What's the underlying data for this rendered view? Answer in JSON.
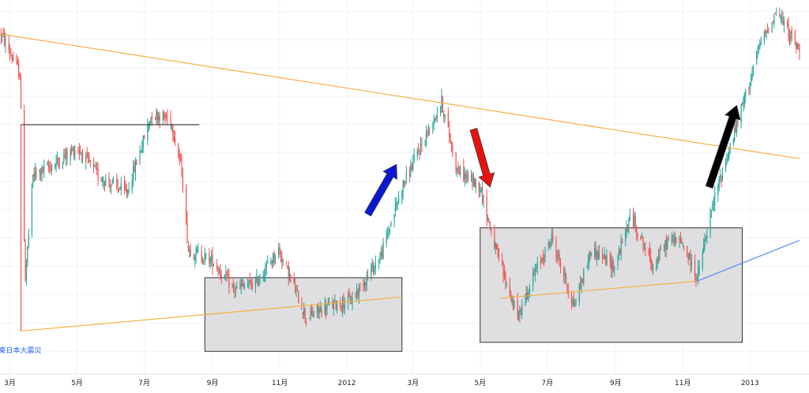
{
  "colors": {
    "background": "#ffffff",
    "grid": "#f0f3fa",
    "axis": "#e0e3eb",
    "up": "#26a69a",
    "down": "#ef5350",
    "trendline": "#f5b041",
    "baseline": "#f5b041",
    "rising_line": "#5b8def",
    "box_fill": "#d9d9dc",
    "box_stroke": "#333333",
    "level_line": "#444444",
    "arrow_blue": "#0a18d6",
    "arrow_red": "#e8110f",
    "arrow_black": "#000000",
    "annotation_text": "#2962ff"
  },
  "chart_data": {
    "type": "candlestick",
    "title": "",
    "xlabel": "",
    "ylabel": "",
    "grid": true,
    "x_range": [
      "2011-02-20",
      "2013-02-15"
    ],
    "y_range": [
      7800,
      11100
    ],
    "x_ticks": [
      {
        "date": "2011-03-01",
        "label": "3月"
      },
      {
        "date": "2011-05-01",
        "label": "5月"
      },
      {
        "date": "2011-07-01",
        "label": "7月"
      },
      {
        "date": "2011-09-01",
        "label": "9月"
      },
      {
        "date": "2011-11-01",
        "label": "11月"
      },
      {
        "date": "2012-01-01",
        "label": "2012"
      },
      {
        "date": "2012-03-01",
        "label": "3月"
      },
      {
        "date": "2012-05-01",
        "label": "5月"
      },
      {
        "date": "2012-07-01",
        "label": "7月"
      },
      {
        "date": "2012-09-01",
        "label": "9月"
      },
      {
        "date": "2012-11-01",
        "label": "11月"
      },
      {
        "date": "2013-01-01",
        "label": "2013"
      }
    ],
    "price_path": [
      [
        "2011-02-21",
        10800
      ],
      [
        "2011-03-10",
        10450
      ],
      [
        "2011-03-15",
        8650
      ],
      [
        "2011-03-22",
        9550
      ],
      [
        "2011-04-10",
        9650
      ],
      [
        "2011-05-01",
        9800
      ],
      [
        "2011-05-20",
        9550
      ],
      [
        "2011-06-15",
        9400
      ],
      [
        "2011-07-08",
        10100
      ],
      [
        "2011-07-25",
        10050
      ],
      [
        "2011-08-04",
        9600
      ],
      [
        "2011-08-10",
        8900
      ],
      [
        "2011-09-01",
        8800
      ],
      [
        "2011-09-20",
        8550
      ],
      [
        "2011-10-10",
        8600
      ],
      [
        "2011-10-31",
        8900
      ],
      [
        "2011-11-25",
        8300
      ],
      [
        "2011-12-15",
        8400
      ],
      [
        "2012-01-05",
        8450
      ],
      [
        "2012-02-01",
        8850
      ],
      [
        "2012-02-20",
        9450
      ],
      [
        "2012-03-27",
        10200
      ],
      [
        "2012-04-10",
        9600
      ],
      [
        "2012-05-01",
        9450
      ],
      [
        "2012-05-15",
        8900
      ],
      [
        "2012-06-04",
        8300
      ],
      [
        "2012-06-20",
        8700
      ],
      [
        "2012-07-05",
        9000
      ],
      [
        "2012-07-25",
        8400
      ],
      [
        "2012-08-10",
        8900
      ],
      [
        "2012-08-31",
        8750
      ],
      [
        "2012-09-15",
        9200
      ],
      [
        "2012-10-05",
        8750
      ],
      [
        "2012-10-20",
        9000
      ],
      [
        "2012-11-01",
        8950
      ],
      [
        "2012-11-14",
        8650
      ],
      [
        "2012-12-01",
        9400
      ],
      [
        "2012-12-20",
        10000
      ],
      [
        "2013-01-10",
        10700
      ],
      [
        "2013-01-25",
        11000
      ],
      [
        "2013-02-15",
        10650
      ]
    ],
    "drawings": {
      "descending_trendline": {
        "start": [
          "2011-02-20",
          10800
        ],
        "end": [
          "2013-02-15",
          9700
        ]
      },
      "ascending_trendline": [
        {
          "start": [
            "2011-03-11",
            8180
          ],
          "end": [
            "2012-02-20",
            8480
          ]
        },
        {
          "start": [
            "2012-05-20",
            8470
          ],
          "end": [
            "2012-11-14",
            8620
          ]
        }
      ],
      "blue_rising_line": {
        "start": [
          "2012-11-14",
          8620
        ],
        "end": [
          "2013-02-15",
          8980
        ]
      },
      "horizontal_level": {
        "start": [
          "2011-03-11",
          10000
        ],
        "end": [
          "2011-08-20",
          10000
        ]
      },
      "vertical_marker": {
        "date": "2011-03-11",
        "from": 10000,
        "to": 8180
      },
      "boxes": [
        {
          "x0": "2011-08-25",
          "x1": "2012-02-20",
          "y0": 8000,
          "y1": 8650
        },
        {
          "x0": "2012-05-01",
          "x1": "2012-12-25",
          "y0": 8080,
          "y1": 9090
        }
      ],
      "arrows": [
        {
          "color": "blue",
          "direction": "up",
          "from": [
            "2012-01-20",
            9210
          ],
          "to": [
            "2012-02-15",
            9650
          ]
        },
        {
          "color": "red",
          "direction": "down",
          "from": [
            "2012-04-25",
            9960
          ],
          "to": [
            "2012-05-10",
            9450
          ]
        },
        {
          "color": "black",
          "direction": "up",
          "from": [
            "2012-11-25",
            9450
          ],
          "to": [
            "2012-12-20",
            10170
          ]
        }
      ]
    },
    "annotations": [
      {
        "text": "東日本大震災",
        "date": "2011-03-11",
        "value": 8100
      }
    ]
  }
}
